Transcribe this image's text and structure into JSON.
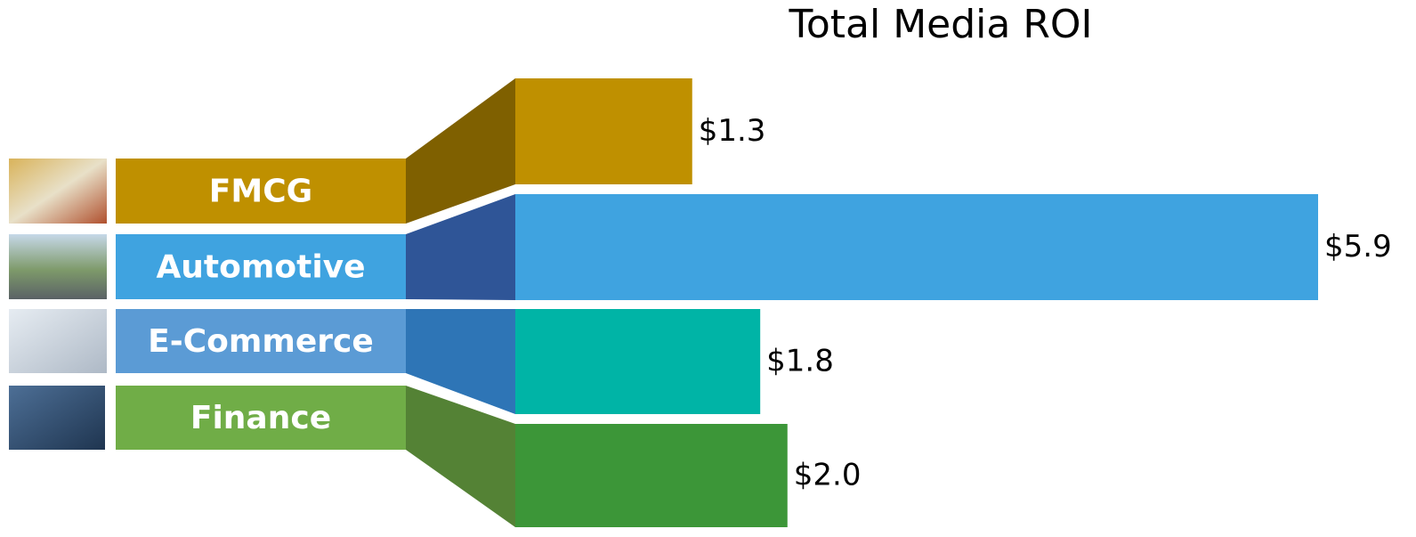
{
  "chart_data": {
    "type": "bar",
    "orientation": "horizontal",
    "title": "Total Media ROI",
    "categories": [
      "FMCG",
      "Automotive",
      "E-Commerce",
      "Finance"
    ],
    "values": [
      1.3,
      5.9,
      1.8,
      2.0
    ],
    "value_labels": [
      "$1.3",
      "$5.9",
      "$1.8",
      "$2.0"
    ],
    "colors": [
      "#bf9000",
      "#3fa3e0",
      "#00b4a6",
      "#3c9638"
    ],
    "label_colors": [
      "#bf9000",
      "#3fa3e0",
      "#5b9bd5",
      "#70ad47"
    ],
    "connector_colors": [
      "#7f6000",
      "#2f5597",
      "#2e75b6",
      "#548235"
    ]
  }
}
